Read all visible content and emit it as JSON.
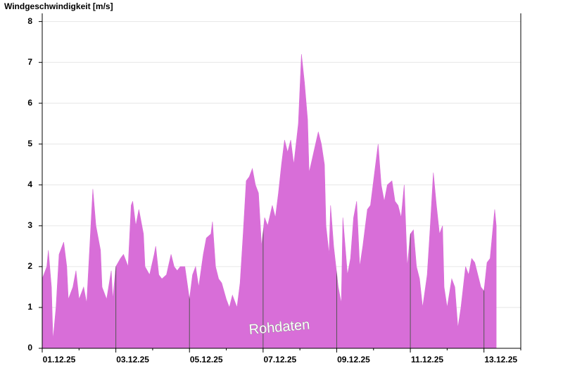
{
  "chart_data": {
    "type": "area",
    "title": "Windgeschwindigkeit [m/s]",
    "annotation": "Rohdaten",
    "color": "#d86ed8",
    "grid": true,
    "x": [
      "2025-12-01 00:00",
      "2025-12-01 03:00",
      "2025-12-01 04:00",
      "2025-12-01 06:00",
      "2025-12-01 07:00",
      "2025-12-01 09:00",
      "2025-12-01 11:00",
      "2025-12-01 14:00",
      "2025-12-01 16:00",
      "2025-12-01 17:00",
      "2025-12-01 20:00",
      "2025-12-01 22:00",
      "2025-12-02 00:00",
      "2025-12-02 03:00",
      "2025-12-02 05:00",
      "2025-12-02 07:00",
      "2025-12-02 09:00",
      "2025-12-02 11:00",
      "2025-12-02 14:00",
      "2025-12-02 15:00",
      "2025-12-02 18:00",
      "2025-12-02 21:00",
      "2025-12-02 22:00",
      "2025-12-03 00:00",
      "2025-12-03 03:00",
      "2025-12-03 05:00",
      "2025-12-03 08:00",
      "2025-12-03 10:00",
      "2025-12-03 11:00",
      "2025-12-03 13:00",
      "2025-12-03 15:00",
      "2025-12-03 18:00",
      "2025-12-03 19:00",
      "2025-12-03 22:00",
      "2025-12-04 01:00",
      "2025-12-04 02:00",
      "2025-12-04 04:00",
      "2025-12-04 06:00",
      "2025-12-04 09:00",
      "2025-12-04 12:00",
      "2025-12-04 14:00",
      "2025-12-04 16:00",
      "2025-12-04 18:00",
      "2025-12-04 21:00",
      "2025-12-05 00:00",
      "2025-12-05 02:00",
      "2025-12-05 04:00",
      "2025-12-05 06:00",
      "2025-12-05 09:00",
      "2025-12-05 11:00",
      "2025-12-05 14:00",
      "2025-12-05 15:00",
      "2025-12-05 17:00",
      "2025-12-05 19:00",
      "2025-12-05 21:00",
      "2025-12-06 00:00",
      "2025-12-06 02:00",
      "2025-12-06 04:00",
      "2025-12-06 07:00",
      "2025-12-06 09:00",
      "2025-12-06 11:00",
      "2025-12-06 13:00",
      "2025-12-06 15:00",
      "2025-12-06 17:00",
      "2025-12-06 19:00",
      "2025-12-06 21:00",
      "2025-12-06 23:00",
      "2025-12-07 01:00",
      "2025-12-07 03:00",
      "2025-12-07 06:00",
      "2025-12-07 08:00",
      "2025-12-07 10:00",
      "2025-12-07 12:00",
      "2025-12-07 14:00",
      "2025-12-07 16:00",
      "2025-12-07 18:00",
      "2025-12-07 20:00",
      "2025-12-07 23:00",
      "2025-12-08 01:00",
      "2025-12-08 03:00",
      "2025-12-08 05:00",
      "2025-12-08 06:00",
      "2025-12-08 09:00",
      "2025-12-08 12:00",
      "2025-12-08 14:00",
      "2025-12-08 16:00",
      "2025-12-08 17:00",
      "2025-12-08 19:00",
      "2025-12-08 20:00",
      "2025-12-08 22:00",
      "2025-12-09 01:00",
      "2025-12-09 03:00",
      "2025-12-09 04:00",
      "2025-12-09 07:00",
      "2025-12-09 09:00",
      "2025-12-09 11:00",
      "2025-12-09 13:00",
      "2025-12-09 15:00",
      "2025-12-09 17:00",
      "2025-12-09 20:00",
      "2025-12-09 22:00",
      "2025-12-10 00:00",
      "2025-12-10 03:00",
      "2025-12-10 05:00",
      "2025-12-10 07:00",
      "2025-12-10 09:00",
      "2025-12-10 12:00",
      "2025-12-10 14:00",
      "2025-12-10 16:00",
      "2025-12-10 18:00",
      "2025-12-10 20:00",
      "2025-12-10 22:00",
      "2025-12-11 00:00",
      "2025-12-11 02:00",
      "2025-12-11 04:00",
      "2025-12-11 06:00",
      "2025-12-11 08:00",
      "2025-12-11 11:00",
      "2025-12-11 13:00",
      "2025-12-11 15:00",
      "2025-12-11 17:00",
      "2025-12-11 19:00",
      "2025-12-11 21:00",
      "2025-12-11 22:00",
      "2025-12-12 00:00",
      "2025-12-12 03:00",
      "2025-12-12 05:00",
      "2025-12-12 07:00",
      "2025-12-12 09:00",
      "2025-12-12 12:00",
      "2025-12-12 14:00",
      "2025-12-12 16:00",
      "2025-12-12 18:00",
      "2025-12-12 20:00",
      "2025-12-12 22:00",
      "2025-12-13 00:00",
      "2025-12-13 02:00",
      "2025-12-13 04:00",
      "2025-12-13 07:00",
      "2025-12-13 08:00"
    ],
    "values": [
      1.7,
      2.0,
      2.4,
      1.5,
      0.2,
      1.0,
      2.3,
      2.6,
      2.0,
      1.2,
      1.5,
      1.9,
      1.2,
      1.5,
      1.1,
      2.5,
      3.9,
      3.0,
      2.4,
      1.5,
      1.2,
      1.9,
      1.2,
      2.0,
      2.2,
      2.3,
      2.0,
      3.5,
      3.6,
      3.0,
      3.4,
      2.8,
      2.0,
      1.8,
      2.3,
      2.5,
      1.8,
      1.7,
      1.8,
      2.3,
      2.0,
      1.9,
      2.0,
      2.0,
      1.2,
      1.8,
      2.0,
      1.5,
      2.3,
      2.7,
      2.8,
      3.1,
      2.0,
      1.7,
      1.6,
      1.2,
      1.0,
      1.3,
      1.0,
      1.6,
      2.8,
      4.1,
      4.2,
      4.4,
      4.0,
      3.8,
      2.5,
      3.2,
      3.0,
      3.5,
      3.2,
      3.8,
      4.5,
      5.1,
      4.8,
      5.1,
      4.5,
      5.5,
      7.2,
      6.5,
      5.6,
      4.3,
      4.8,
      5.3,
      5.0,
      4.5,
      3.0,
      2.3,
      3.5,
      2.5,
      1.5,
      1.1,
      3.2,
      1.8,
      2.2,
      3.2,
      3.6,
      2.0,
      2.5,
      3.4,
      3.5,
      4.1,
      5.0,
      4.0,
      3.6,
      4.0,
      4.1,
      3.6,
      3.5,
      3.2,
      4.0,
      2.0,
      2.8,
      2.9,
      2.0,
      1.7,
      1.0,
      1.8,
      3.0,
      4.3,
      3.5,
      2.8,
      3.0,
      1.5,
      1.0,
      1.7,
      1.5,
      0.5,
      1.0,
      2.0,
      1.8,
      2.2,
      2.1,
      1.8,
      1.5,
      1.4,
      2.1,
      2.2,
      3.4,
      3.0
    ],
    "xlim": [
      "2025-12-01 00:00",
      "2025-12-14 00:00"
    ],
    "xticks": [
      {
        "value": "2025-12-01 00:00",
        "label": "01.12.25"
      },
      {
        "value": "2025-12-03 00:00",
        "label": "03.12.25"
      },
      {
        "value": "2025-12-05 00:00",
        "label": "05.12.25"
      },
      {
        "value": "2025-12-07 00:00",
        "label": "07.12.25"
      },
      {
        "value": "2025-12-09 00:00",
        "label": "09.12.25"
      },
      {
        "value": "2025-12-11 00:00",
        "label": "11.12.25"
      },
      {
        "value": "2025-12-13 00:00",
        "label": "13.12.25"
      }
    ],
    "xminorticks": [
      "2025-12-02 00:00",
      "2025-12-04 00:00",
      "2025-12-06 00:00",
      "2025-12-08 00:00",
      "2025-12-10 00:00",
      "2025-12-12 00:00",
      "2025-12-14 00:00"
    ],
    "ylim": [
      0,
      8.2
    ],
    "yticks": [
      0,
      1,
      2,
      3,
      4,
      5,
      6,
      7,
      8
    ]
  }
}
